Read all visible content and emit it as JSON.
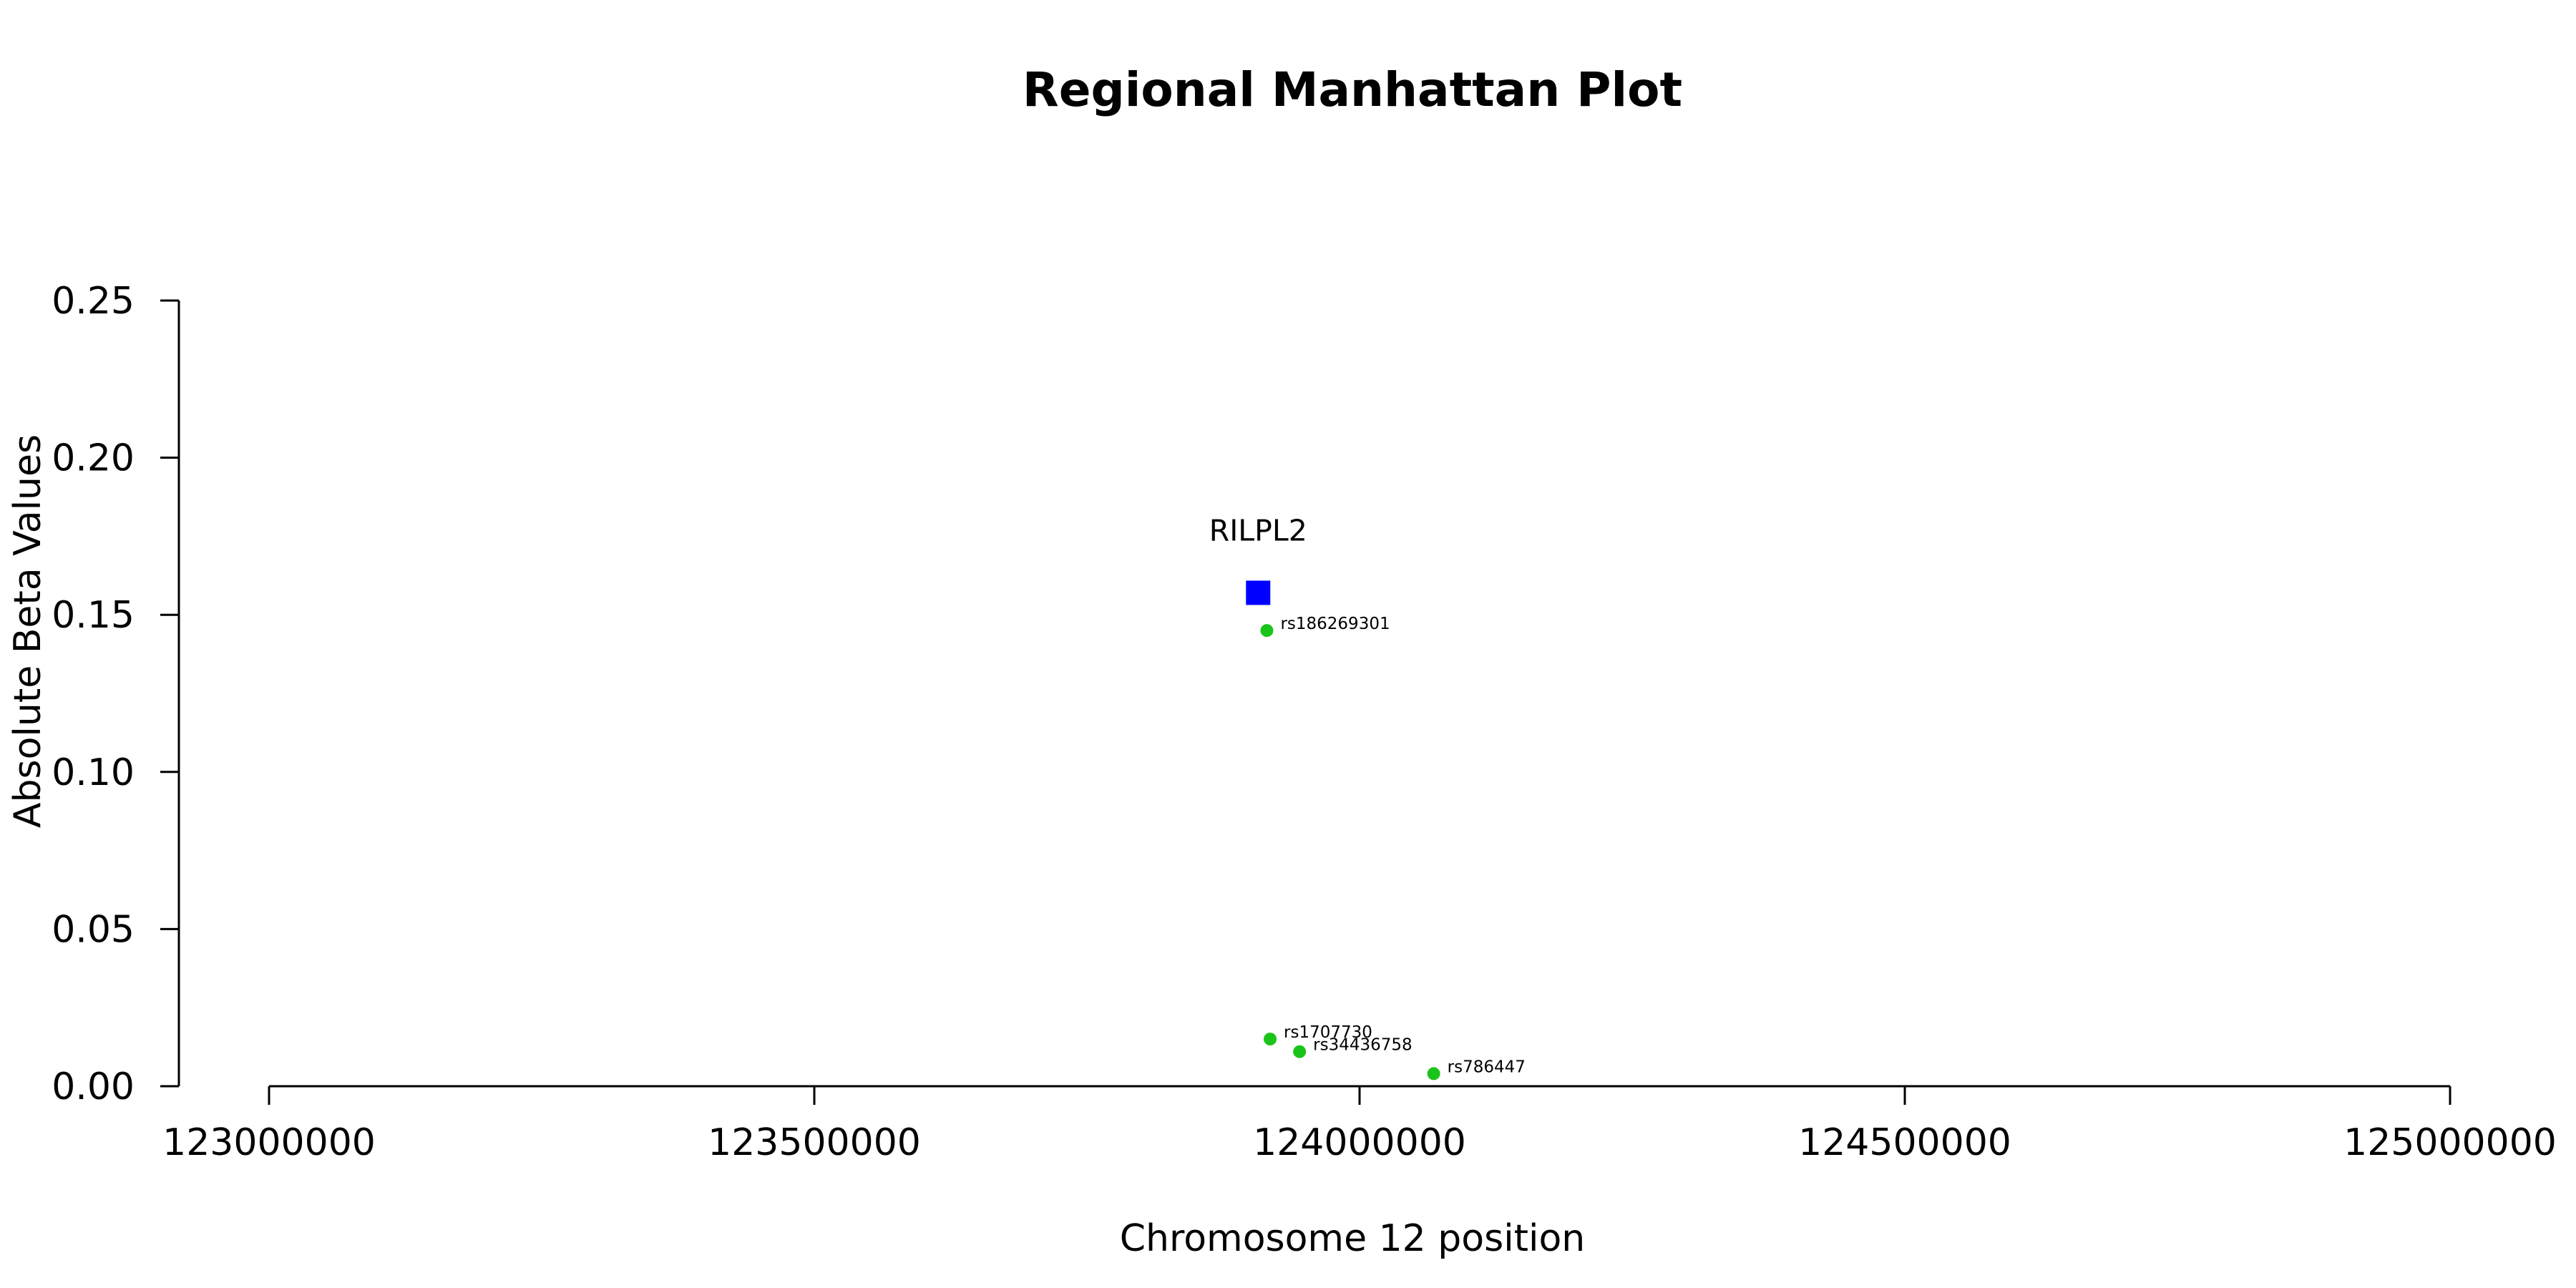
{
  "chart_data": {
    "type": "scatter",
    "title": "Regional Manhattan Plot",
    "xlabel": "Chromosome 12 position",
    "ylabel": "Absolute Beta Values",
    "xlim": [
      123000000,
      125000000
    ],
    "ylim": [
      0,
      0.25
    ],
    "xticks": [
      123000000,
      123500000,
      124000000,
      124500000,
      125000000
    ],
    "xtick_labels": [
      "123000000",
      "123500000",
      "124000000",
      "124500000",
      "125000000"
    ],
    "yticks": [
      0,
      0.05,
      0.1,
      0.15,
      0.2,
      0.25
    ],
    "ytick_labels": [
      "0.00",
      "0.05",
      "0.10",
      "0.15",
      "0.20",
      "0.25"
    ],
    "grid": false,
    "gene": {
      "label": "RILPL2",
      "x": 123907000,
      "y": 0.157,
      "marker": "square",
      "color": "#0000ff"
    },
    "snps": [
      {
        "label": "rs186269301",
        "x": 123915000,
        "y": 0.145
      },
      {
        "label": "rs1707730",
        "x": 123918000,
        "y": 0.015
      },
      {
        "label": "rs34436758",
        "x": 123945000,
        "y": 0.011
      },
      {
        "label": "rs786447",
        "x": 124068000,
        "y": 0.004
      }
    ],
    "snp_color": "#1ac41a"
  }
}
